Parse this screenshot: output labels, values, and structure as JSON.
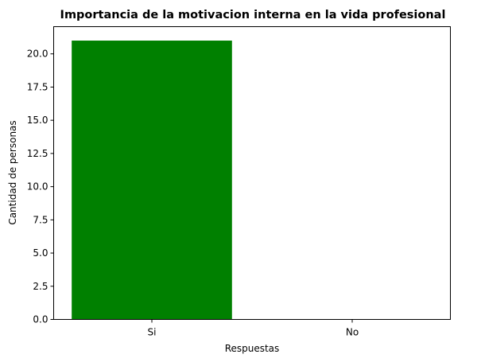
{
  "chart_data": {
    "type": "bar",
    "title": "Importancia de la motivacion interna en la vida profesional",
    "xlabel": "Respuestas",
    "ylabel": "Cantidad de personas",
    "categories": [
      "Si",
      "No"
    ],
    "values": [
      21,
      0
    ],
    "ylim": [
      0,
      22.05
    ],
    "yticks": [
      "0.0",
      "2.5",
      "5.0",
      "7.5",
      "10.0",
      "12.5",
      "15.0",
      "17.5",
      "20.0"
    ],
    "bar_color": "#008000",
    "grid": false
  }
}
